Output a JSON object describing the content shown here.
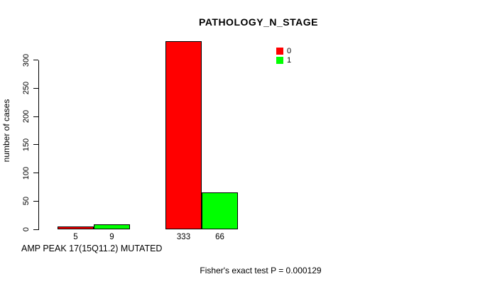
{
  "chart_data": {
    "type": "bar",
    "title": "PATHOLOGY_N_STAGE",
    "ylabel": "number of cases",
    "xlabel": "AMP PEAK 17(15Q11.2) MUTATED",
    "annotation": "Fisher's exact test P = 0.000129",
    "series": [
      {
        "name": "0",
        "color": "#ff0000",
        "values": [
          5,
          333
        ]
      },
      {
        "name": "1",
        "color": "#00ff00",
        "values": [
          9,
          66
        ]
      }
    ],
    "value_labels": [
      [
        "5",
        "9"
      ],
      [
        "333",
        "66"
      ]
    ],
    "yticks": [
      0,
      50,
      100,
      150,
      200,
      250,
      300
    ],
    "ylim": [
      0,
      340
    ],
    "grid": false,
    "legend_position": "top-right",
    "axis_color": "#000000",
    "text_color": "#000000",
    "background": "#ffffff"
  }
}
